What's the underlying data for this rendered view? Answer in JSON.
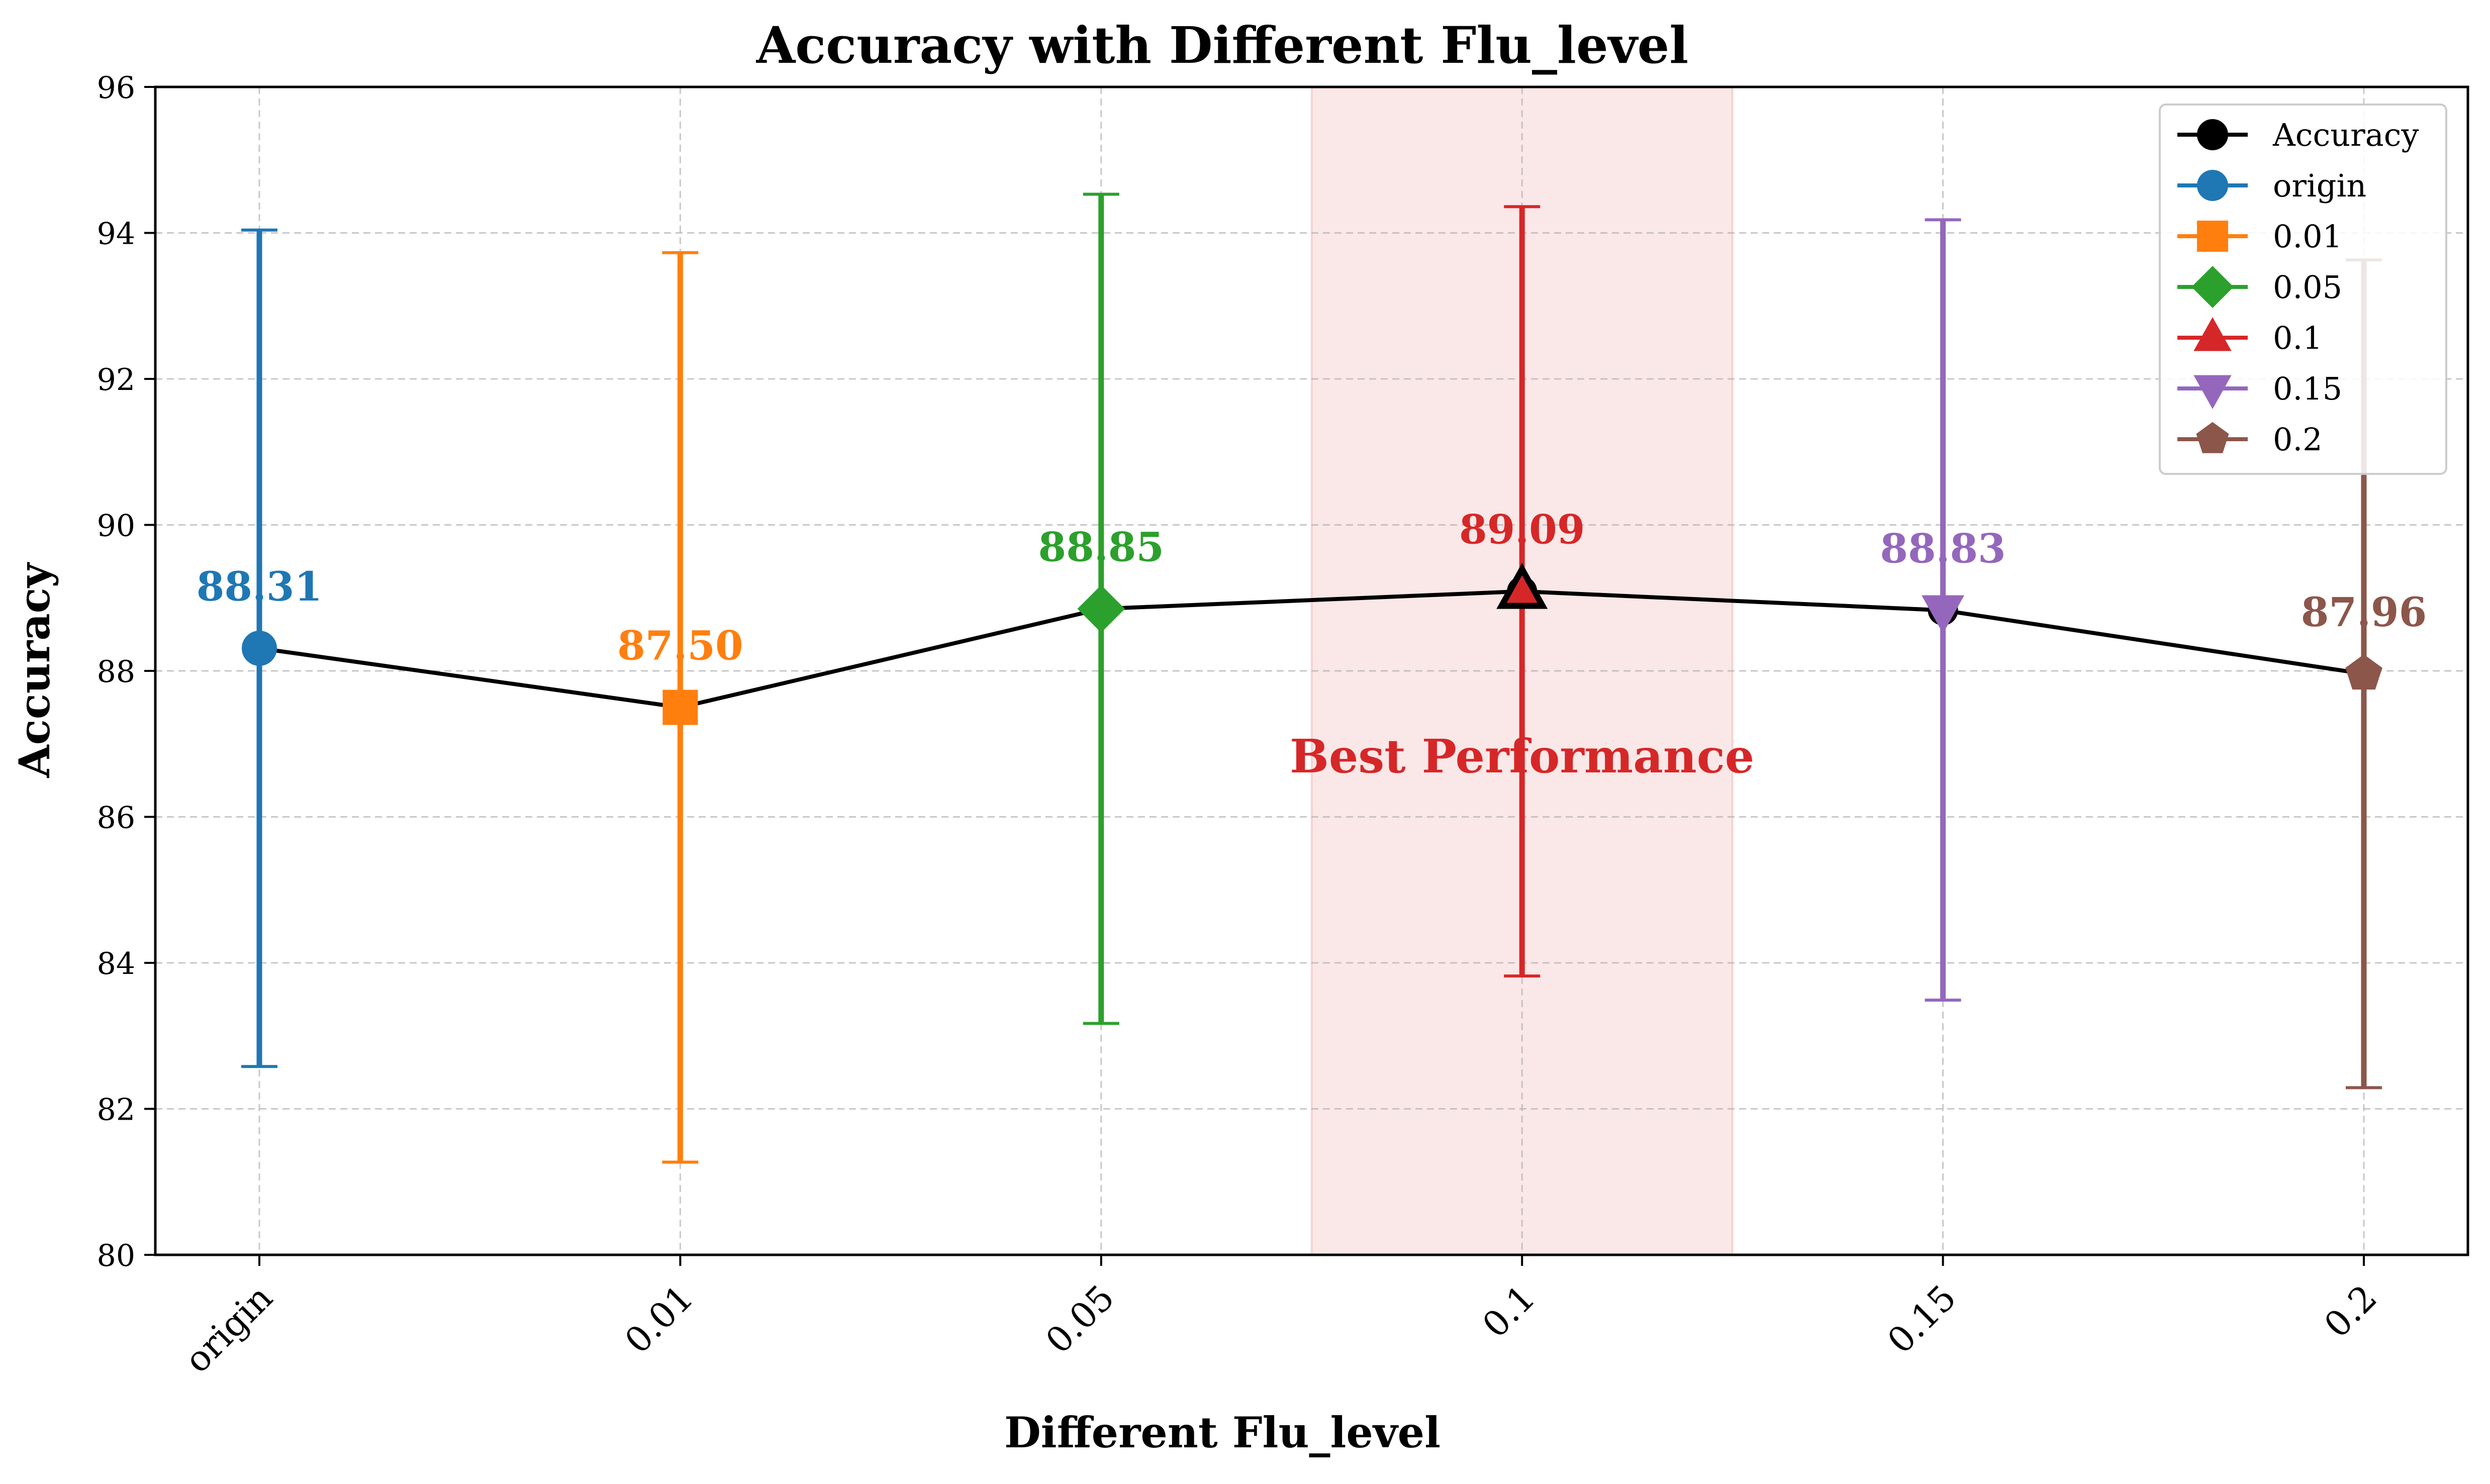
{
  "chart_data": {
    "type": "line",
    "title": "Accuracy with Different Flu_level",
    "xlabel": "Different Flu_level",
    "ylabel": "Accuracy",
    "categories": [
      "origin",
      "0.01",
      "0.05",
      "0.1",
      "0.15",
      "0.2"
    ],
    "values": [
      88.31,
      87.5,
      88.85,
      89.09,
      88.83,
      87.96
    ],
    "value_labels": [
      "88.31",
      "87.50",
      "88.85",
      "89.09",
      "88.83",
      "87.96"
    ],
    "error_low": [
      82.58,
      81.27,
      83.17,
      83.82,
      83.49,
      82.29
    ],
    "error_high": [
      94.04,
      93.73,
      94.53,
      94.36,
      94.18,
      93.63
    ],
    "ylim": [
      80,
      96
    ],
    "yticks": [
      80,
      82,
      84,
      86,
      88,
      90,
      92,
      94,
      96
    ],
    "grid": true,
    "legend_position": "top-right",
    "legend": [
      "Accuracy",
      "origin",
      "0.01",
      "0.05",
      "0.1",
      "0.15",
      "0.2"
    ],
    "line_color": "#000000",
    "colors": [
      "#1f77b4",
      "#ff7f0e",
      "#2ca02c",
      "#d62728",
      "#9467bd",
      "#8c564b"
    ],
    "markers": [
      "circle",
      "square",
      "diamond",
      "triangle-up",
      "triangle-down",
      "pentagon"
    ],
    "highlight": {
      "category": "0.1",
      "label": "Best Performance",
      "color": "#d62728"
    }
  }
}
